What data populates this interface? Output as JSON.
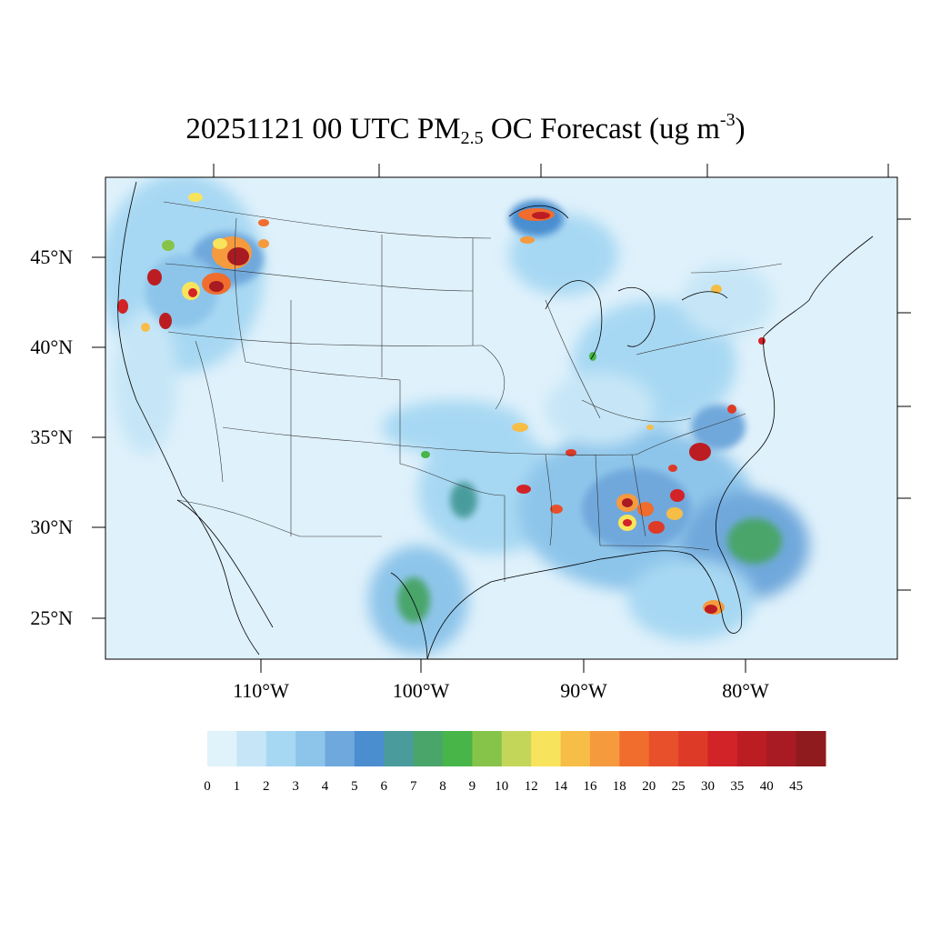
{
  "title": {
    "prefix": "20251121 00 UTC PM",
    "subscript": "2.5",
    "middle": " OC Forecast (ug m",
    "superscript": "-3",
    "suffix": ")"
  },
  "map": {
    "projection": "lambert-conformal",
    "region": "CONUS",
    "field": "PM2.5 OC",
    "units": "ug m-3",
    "background_color": "#dff1fb",
    "lat_labels": [
      "45°N",
      "40°N",
      "35°N",
      "30°N",
      "25°N"
    ],
    "lon_labels": [
      "110°W",
      "100°W",
      "90°W",
      "80°W"
    ]
  },
  "colorbar": {
    "colors": [
      "#e0f3fb",
      "#c6e6f7",
      "#a7d8f3",
      "#8dc5ea",
      "#6fa8dc",
      "#4a8ed0",
      "#4a9c9c",
      "#4aa56b",
      "#47b548",
      "#86c449",
      "#c3d65a",
      "#f8e45c",
      "#f6bd47",
      "#f69a3e",
      "#f06d2e",
      "#e8502c",
      "#de3a28",
      "#d22328",
      "#bb1d23",
      "#a81b22",
      "#8f1b1e"
    ],
    "labels": [
      "0",
      "1",
      "2",
      "3",
      "4",
      "5",
      "6",
      "7",
      "8",
      "9",
      "10",
      "12",
      "14",
      "16",
      "18",
      "20",
      "25",
      "30",
      "35",
      "40",
      "45"
    ]
  }
}
